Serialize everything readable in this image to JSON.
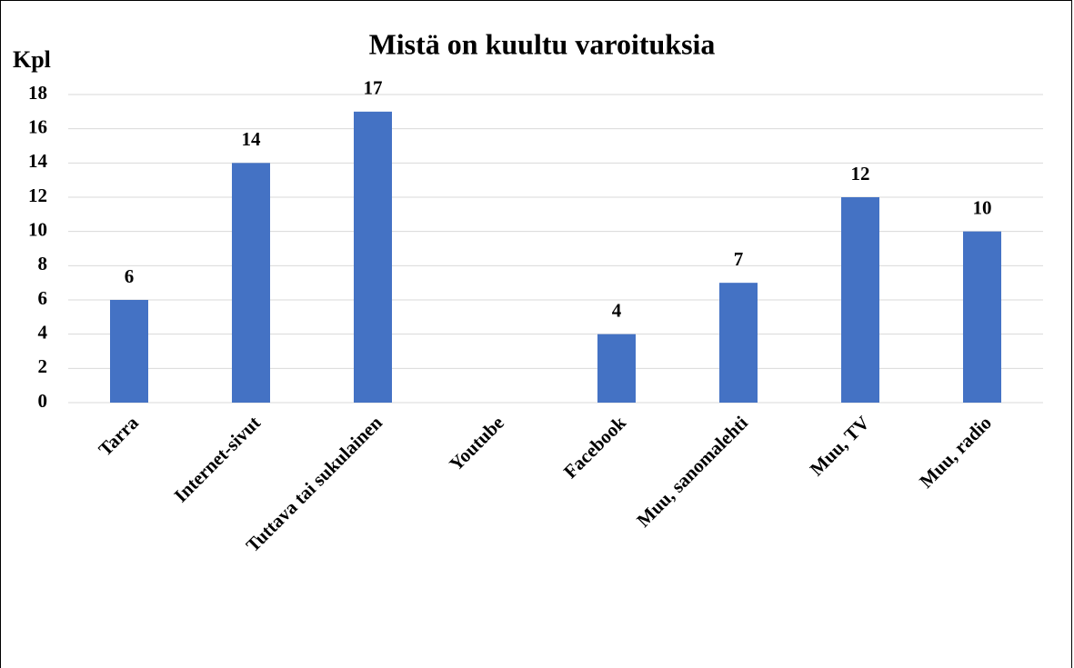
{
  "chart_data": {
    "type": "bar",
    "title": "Mistä on kuultu varoituksia",
    "y_label": "Kpl",
    "categories": [
      "Tarra",
      "Internet-sivut",
      "Tuttava tai sukulainen",
      "Youtube",
      "Facebook",
      "Muu, sanomalehti",
      "Muu, TV",
      "Muu, radio"
    ],
    "values": [
      6,
      14,
      17,
      0,
      4,
      7,
      12,
      10
    ],
    "value_labels": [
      "6",
      "14",
      "17",
      null,
      "4",
      "7",
      "12",
      "10"
    ],
    "color": "#4472c4",
    "ylim": [
      0,
      18
    ],
    "yticks": [
      0,
      2,
      4,
      6,
      8,
      10,
      12,
      14,
      16,
      18
    ],
    "grid": true
  }
}
